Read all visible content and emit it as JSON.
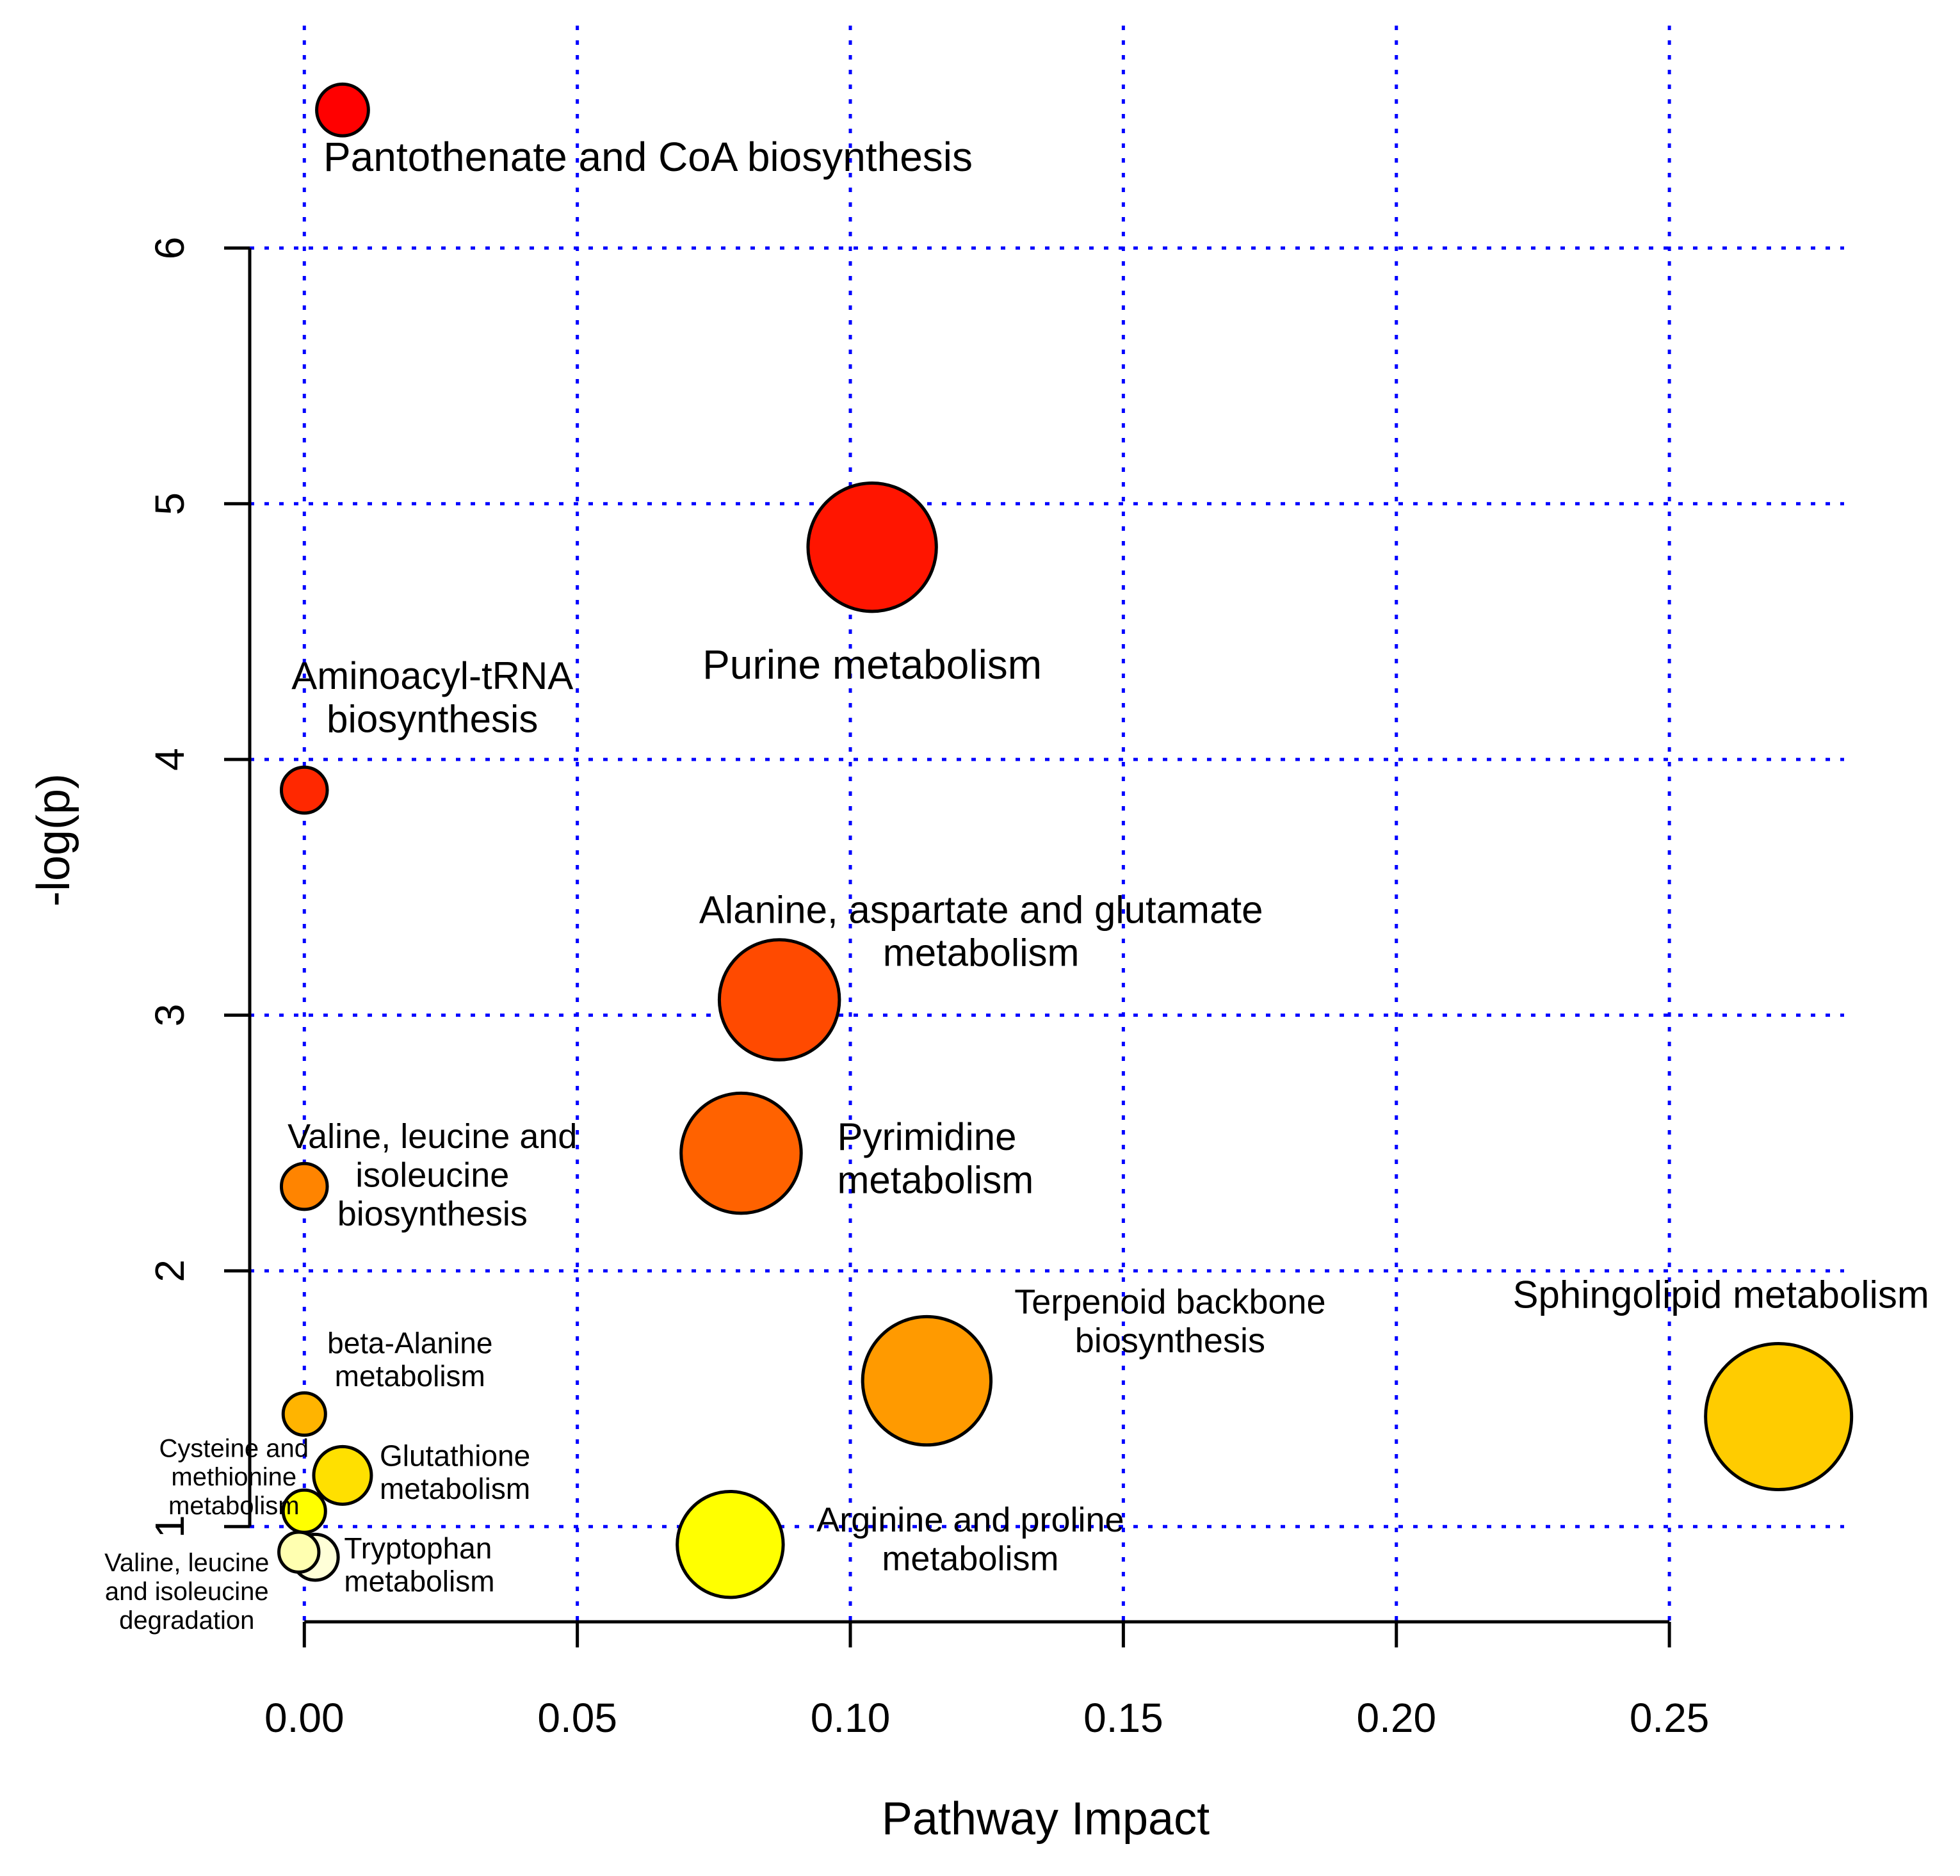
{
  "chart_data": {
    "type": "scatter",
    "title": "",
    "xlabel": "Pathway Impact",
    "ylabel": "-log(p)",
    "xlim": [
      -0.01,
      0.282
    ],
    "ylim": [
      0.66,
      6.92
    ],
    "x_ticks": [
      0.0,
      0.05,
      0.1,
      0.15,
      0.2,
      0.25
    ],
    "x_tick_labels": [
      "0.00",
      "0.05",
      "0.10",
      "0.15",
      "0.20",
      "0.25"
    ],
    "y_ticks": [
      1,
      2,
      3,
      4,
      5,
      6
    ],
    "y_tick_labels": [
      "1",
      "2",
      "3",
      "4",
      "5",
      "6"
    ],
    "grid": true,
    "grid_color": "#0000ff",
    "points": [
      {
        "name": "Pantothenate and CoA biosynthesis",
        "label_lines": [
          "Pantothenate and CoA biosynthesis"
        ],
        "x": 0.007,
        "y": 6.54,
        "size": 0.2,
        "color": "#ff0000",
        "label_pos": "below-right",
        "label_size": "large"
      },
      {
        "name": "Purine metabolism",
        "label_lines": [
          "Purine metabolism"
        ],
        "x": 0.104,
        "y": 4.83,
        "size": 0.85,
        "color": "#ff1500",
        "label_pos": "below",
        "label_size": "large"
      },
      {
        "name": "Aminoacyl-tRNA biosynthesis",
        "label_lines": [
          "Aminoacyl-tRNA",
          "biosynthesis"
        ],
        "x": 0.0,
        "y": 3.88,
        "size": 0.15,
        "color": "#ff2800",
        "label_pos": "above",
        "label_size": "medium"
      },
      {
        "name": "Alanine, aspartate and glutamate metabolism",
        "label_lines": [
          "Alanine, aspartate and glutamate",
          "metabolism"
        ],
        "x": 0.087,
        "y": 3.06,
        "size": 0.78,
        "color": "#ff4a00",
        "label_pos": "above",
        "label_size": "medium"
      },
      {
        "name": "Pyrimidine metabolism",
        "label_lines": [
          "Pyrimidine",
          "metabolism"
        ],
        "x": 0.08,
        "y": 2.46,
        "size": 0.78,
        "color": "#ff6200",
        "label_pos": "right",
        "label_size": "medium"
      },
      {
        "name": "Valine, leucine and isoleucine biosynthesis",
        "label_lines": [
          "Valine, leucine and",
          "isoleucine",
          "biosynthesis"
        ],
        "x": 0.0,
        "y": 2.33,
        "size": 0.15,
        "color": "#ff8400",
        "label_pos": "right",
        "label_size": "small"
      },
      {
        "name": "Terpenoid backbone biosynthesis",
        "label_lines": [
          "Terpenoid backbone",
          "biosynthesis"
        ],
        "x": 0.114,
        "y": 1.57,
        "size": 0.85,
        "color": "#ff9a00",
        "label_pos": "upper-right",
        "label_size": "small"
      },
      {
        "name": "Sphingolipid metabolism",
        "label_lines": [
          "Sphingolipid metabolism"
        ],
        "x": 0.27,
        "y": 1.43,
        "size": 1.0,
        "color": "#ffcc00",
        "label_pos": "above",
        "label_size": "medium"
      },
      {
        "name": "beta-Alanine metabolism",
        "label_lines": [
          "beta-Alanine",
          "metabolism"
        ],
        "x": 0.0,
        "y": 1.44,
        "size": 0.12,
        "color": "#ffb400",
        "label_pos": "above-right",
        "label_size": "xsmall"
      },
      {
        "name": "Glutathione metabolism",
        "label_lines": [
          "Glutathione",
          "metabolism"
        ],
        "x": 0.007,
        "y": 1.2,
        "size": 0.25,
        "color": "#ffe000",
        "label_pos": "right",
        "label_size": "xsmall"
      },
      {
        "name": "Cysteine and methionine metabolism",
        "label_lines": [
          "Cysteine and",
          "methionine",
          "metabolism"
        ],
        "x": 0.0,
        "y": 1.06,
        "size": 0.12,
        "color": "#ffff00",
        "label_pos": "left",
        "label_size": "tiny"
      },
      {
        "name": "Arginine and proline metabolism",
        "label_lines": [
          "Arginine and proline",
          "metabolism"
        ],
        "x": 0.078,
        "y": 0.93,
        "size": 0.66,
        "color": "#ffff00",
        "label_pos": "right",
        "label_size": "small"
      },
      {
        "name": "Valine, leucine and isoleucine degradation",
        "label_lines": [
          "Valine, leucine",
          "and isoleucine",
          "degradation"
        ],
        "x": -0.001,
        "y": 0.9,
        "size": 0.1,
        "color": "#ffffb0",
        "label_pos": "left",
        "label_size": "tiny"
      },
      {
        "name": "Tryptophan metabolism",
        "label_lines": [
          "Tryptophan",
          "metabolism"
        ],
        "x": 0.002,
        "y": 0.88,
        "size": 0.15,
        "color": "#ffffd8",
        "label_pos": "right",
        "label_size": "xsmall"
      }
    ]
  }
}
